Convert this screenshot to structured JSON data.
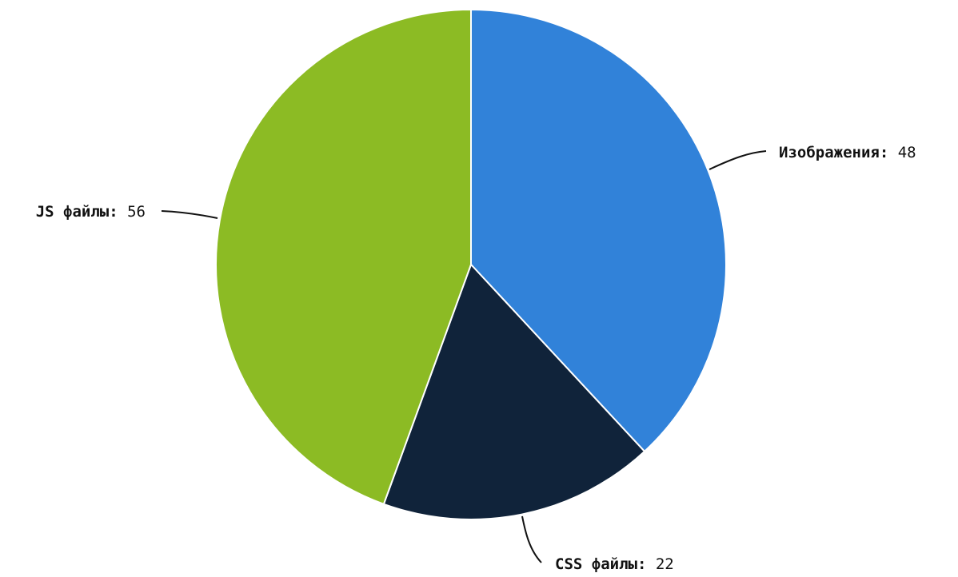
{
  "chart_data": {
    "type": "pie",
    "title": "",
    "slices": [
      {
        "name": "Изображения",
        "value": 48,
        "color": "#3182D9"
      },
      {
        "name": "CSS файлы",
        "value": 22,
        "color": "#10233A"
      },
      {
        "name": "JS файлы",
        "value": 56,
        "color": "#8CBB24"
      }
    ],
    "label_separator": ":",
    "start_angle": "12 o'clock",
    "direction": "clockwise",
    "legend": "none"
  }
}
